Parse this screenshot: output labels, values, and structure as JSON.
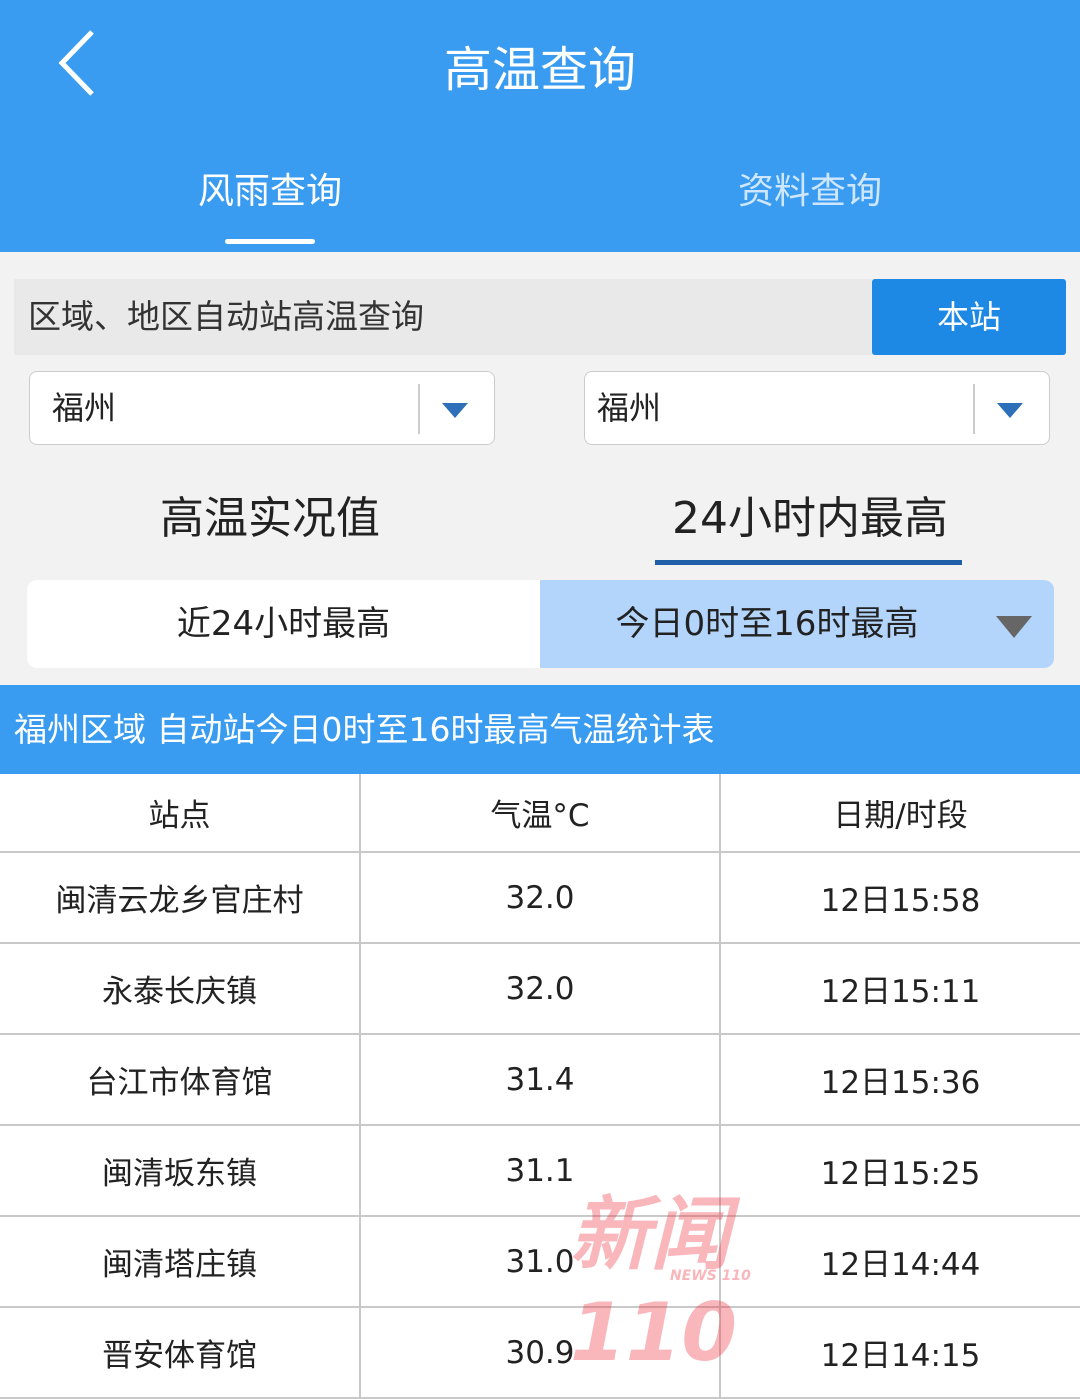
{
  "header": {
    "title": "高温查询",
    "tabs": [
      {
        "label": "风雨查询",
        "active": true
      },
      {
        "label": "资料查询",
        "active": false
      }
    ]
  },
  "search": {
    "label": "区域、地区自动站高温查询",
    "button": "本站"
  },
  "dropdowns": [
    {
      "value": "福州"
    },
    {
      "value": "福州"
    }
  ],
  "subtabs": [
    {
      "label": "高温实况值",
      "active": false
    },
    {
      "label": "24小时内最高",
      "active": true
    }
  ],
  "segments": [
    {
      "label": "近24小时最高",
      "active": false
    },
    {
      "label": "今日0时至16时最高",
      "active": true
    }
  ],
  "banner": "福州区域 自动站今日0时至16时最高气温统计表",
  "table": {
    "headers": [
      "站点",
      "气温°C",
      "日期/时段"
    ],
    "rows": [
      [
        "闽清云龙乡官庄村",
        "32.0",
        "12日15:58"
      ],
      [
        "永泰长庆镇",
        "32.0",
        "12日15:11"
      ],
      [
        "台江市体育馆",
        "31.4",
        "12日15:36"
      ],
      [
        "闽清坂东镇",
        "31.1",
        "12日15:25"
      ],
      [
        "闽清塔庄镇",
        "31.0",
        "12日14:44"
      ],
      [
        "晋安体育馆",
        "30.9",
        "12日14:15"
      ]
    ]
  },
  "watermark": {
    "logo": "新闻110",
    "sub": "NEWS 110"
  },
  "colors": {
    "header": "#3a9cf0",
    "button": "#1e88e5",
    "active_segment": "#b3d5fb",
    "underline": "#1f5fa8"
  }
}
